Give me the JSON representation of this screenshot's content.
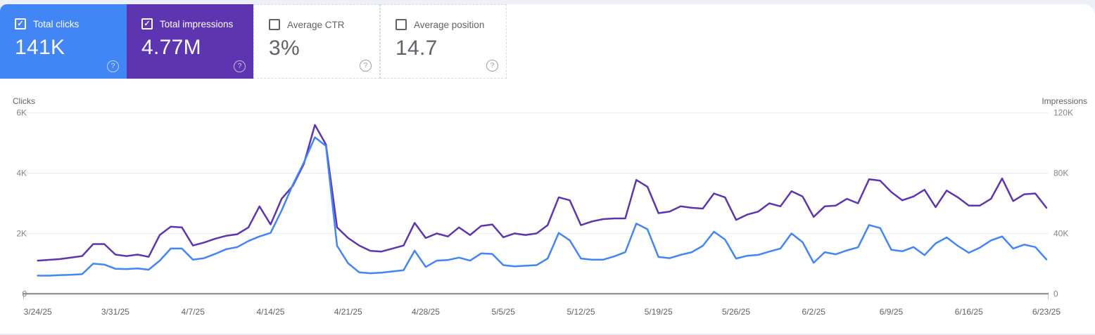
{
  "icons": {
    "check": "✓",
    "help": "?"
  },
  "cards": [
    {
      "label": "Total clicks",
      "value": "141K",
      "checked": true,
      "accent": "#4285f4"
    },
    {
      "label": "Total impressions",
      "value": "4.77M",
      "checked": true,
      "accent": "#5e35b1"
    },
    {
      "label": "Average CTR",
      "value": "3%",
      "checked": false,
      "accent": "#ffffff"
    },
    {
      "label": "Average position",
      "value": "14.7",
      "checked": false,
      "accent": "#ffffff"
    }
  ],
  "chart_data": {
    "type": "line",
    "grid": true,
    "legend_position": "none",
    "left_axis": {
      "label": "Clicks",
      "ticks": [
        "0",
        "2K",
        "4K",
        "6K"
      ],
      "tick_values": [
        0,
        2000,
        4000,
        6000
      ],
      "range": [
        0,
        6000
      ]
    },
    "right_axis": {
      "label": "Impressions",
      "ticks": [
        "0",
        "40K",
        "80K",
        "120K"
      ],
      "tick_values": [
        0,
        40000,
        80000,
        120000
      ],
      "range": [
        0,
        120000
      ]
    },
    "x_ticks": [
      {
        "label": "3/24/25",
        "day": 0
      },
      {
        "label": "3/31/25",
        "day": 7
      },
      {
        "label": "4/7/25",
        "day": 14
      },
      {
        "label": "4/14/25",
        "day": 21
      },
      {
        "label": "4/21/25",
        "day": 28
      },
      {
        "label": "4/28/25",
        "day": 35
      },
      {
        "label": "5/5/25",
        "day": 42
      },
      {
        "label": "5/12/25",
        "day": 49
      },
      {
        "label": "5/19/25",
        "day": 56
      },
      {
        "label": "5/26/25",
        "day": 63
      },
      {
        "label": "6/2/25",
        "day": 70
      },
      {
        "label": "6/9/25",
        "day": 77
      },
      {
        "label": "6/16/25",
        "day": 84
      },
      {
        "label": "6/23/25",
        "day": 91
      }
    ],
    "series": [
      {
        "name": "Total clicks",
        "axis": "left",
        "color": "#4285f4",
        "values": [
          600,
          600,
          620,
          630,
          650,
          1000,
          970,
          830,
          820,
          840,
          800,
          1100,
          1500,
          1500,
          1130,
          1180,
          1320,
          1480,
          1550,
          1750,
          1900,
          2020,
          2760,
          3610,
          4350,
          5190,
          4900,
          1590,
          1010,
          710,
          680,
          700,
          740,
          780,
          1430,
          890,
          1100,
          1120,
          1200,
          1100,
          1340,
          1320,
          950,
          910,
          930,
          950,
          1170,
          2020,
          1770,
          1170,
          1130,
          1130,
          1240,
          1380,
          2330,
          2140,
          1220,
          1180,
          1290,
          1380,
          1590,
          2060,
          1800,
          1170,
          1260,
          1290,
          1400,
          1500,
          2000,
          1710,
          1030,
          1380,
          1310,
          1440,
          1540,
          2280,
          2180,
          1460,
          1410,
          1550,
          1280,
          1670,
          1870,
          1590,
          1360,
          1530,
          1770,
          1900,
          1500,
          1630,
          1550,
          1140
        ]
      },
      {
        "name": "Total impressions",
        "axis": "right",
        "color": "#5e35b1",
        "values": [
          22000,
          22500,
          23000,
          24000,
          25000,
          33000,
          33000,
          26000,
          25000,
          26000,
          24500,
          39000,
          44500,
          44000,
          32000,
          34000,
          36500,
          38500,
          39500,
          44000,
          58000,
          46000,
          63000,
          71500,
          86000,
          112000,
          99000,
          44000,
          37000,
          32000,
          28500,
          28000,
          30000,
          32000,
          47000,
          37000,
          40000,
          38000,
          44000,
          39000,
          45000,
          46000,
          37500,
          40000,
          39000,
          40000,
          45500,
          64000,
          62000,
          45500,
          48000,
          49500,
          50000,
          50000,
          75500,
          71000,
          53500,
          54500,
          58000,
          57000,
          56500,
          66500,
          64000,
          49000,
          52500,
          54500,
          60000,
          58000,
          68000,
          64500,
          51000,
          58000,
          58500,
          63000,
          60000,
          76000,
          75000,
          67500,
          62000,
          64500,
          69000,
          57500,
          68500,
          64000,
          58500,
          58500,
          63000,
          76500,
          61500,
          66000,
          66500,
          57000
        ]
      }
    ]
  }
}
